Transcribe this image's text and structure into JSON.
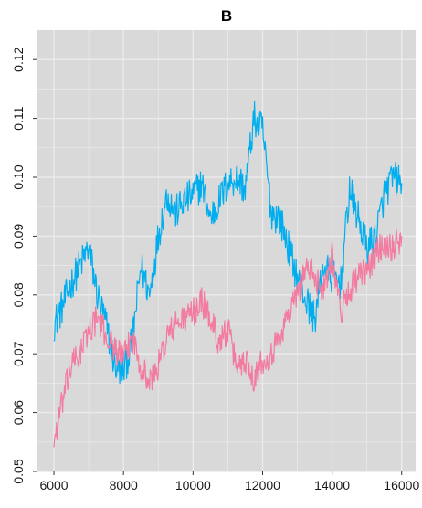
{
  "chart_data": {
    "type": "line",
    "title": "B",
    "xlabel": "",
    "ylabel": "",
    "xlim": [
      5500,
      16400
    ],
    "ylim": [
      0.05,
      0.125
    ],
    "x_ticks": [
      6000,
      8000,
      10000,
      12000,
      14000,
      16000
    ],
    "y_ticks": [
      0.05,
      0.06,
      0.07,
      0.08,
      0.09,
      0.1,
      0.11,
      0.12
    ],
    "y_tick_labels": [
      "0.05",
      "0.06",
      "0.07",
      "0.08",
      "0.09",
      "0.10",
      "0.11",
      "0.12"
    ],
    "grid": true,
    "background": "#d9d9d9",
    "gridline_color": "#ebebeb",
    "series": [
      {
        "color": "#00aeef",
        "x": [
          6000,
          6250,
          6500,
          6750,
          7000,
          7250,
          7500,
          7750,
          8000,
          8250,
          8500,
          8750,
          9000,
          9250,
          9500,
          9750,
          10000,
          10250,
          10500,
          10750,
          11000,
          11250,
          11500,
          11750,
          12000,
          12250,
          12500,
          12750,
          13000,
          13250,
          13500,
          13750,
          14000,
          14250,
          14500,
          14750,
          15000,
          15250,
          15500,
          15750,
          16000
        ],
        "y": [
          0.075,
          0.078,
          0.082,
          0.085,
          0.088,
          0.08,
          0.075,
          0.068,
          0.067,
          0.072,
          0.085,
          0.08,
          0.09,
          0.097,
          0.094,
          0.096,
          0.097,
          0.099,
          0.093,
          0.096,
          0.099,
          0.1,
          0.098,
          0.11,
          0.108,
          0.094,
          0.093,
          0.088,
          0.083,
          0.079,
          0.076,
          0.085,
          0.083,
          0.082,
          0.098,
          0.093,
          0.088,
          0.09,
          0.097,
          0.1,
          0.099
        ],
        "noise": 0.003
      },
      {
        "color": "#f37ba0",
        "x": [
          6000,
          6250,
          6500,
          6750,
          7000,
          7250,
          7500,
          7750,
          8000,
          8250,
          8500,
          8750,
          9000,
          9250,
          9500,
          9750,
          10000,
          10250,
          10500,
          10750,
          11000,
          11250,
          11500,
          11750,
          12000,
          12250,
          12500,
          12750,
          13000,
          13250,
          13500,
          13750,
          14000,
          14250,
          14500,
          14750,
          15000,
          15250,
          15500,
          15750,
          16000
        ],
        "y": [
          0.055,
          0.062,
          0.068,
          0.07,
          0.074,
          0.076,
          0.073,
          0.071,
          0.069,
          0.073,
          0.068,
          0.065,
          0.068,
          0.073,
          0.075,
          0.076,
          0.077,
          0.079,
          0.076,
          0.072,
          0.074,
          0.068,
          0.069,
          0.066,
          0.069,
          0.07,
          0.073,
          0.077,
          0.08,
          0.085,
          0.083,
          0.081,
          0.087,
          0.077,
          0.081,
          0.083,
          0.084,
          0.087,
          0.089,
          0.088,
          0.09
        ],
        "noise": 0.0025
      }
    ]
  }
}
